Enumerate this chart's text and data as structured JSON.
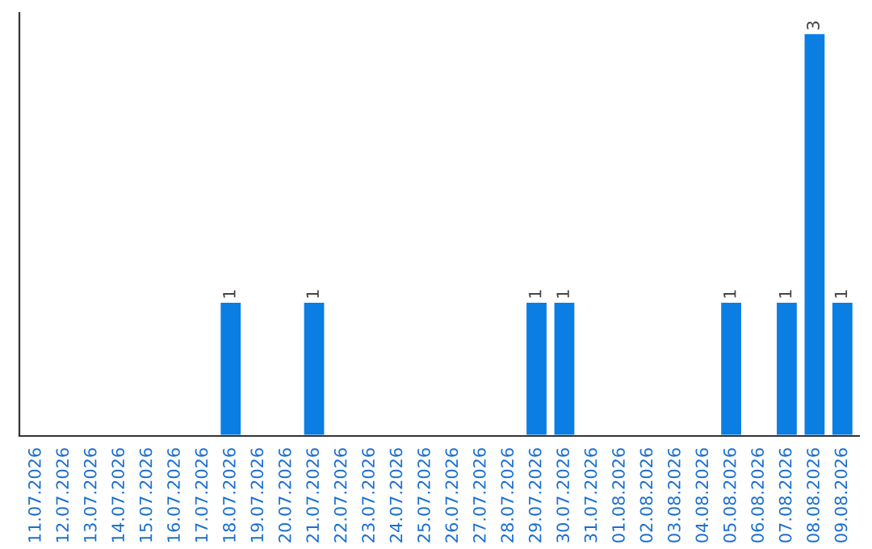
{
  "chart_data": {
    "type": "bar",
    "categories": [
      "11.07.2026",
      "12.07.2026",
      "13.07.2026",
      "14.07.2026",
      "15.07.2026",
      "16.07.2026",
      "17.07.2026",
      "18.07.2026",
      "19.07.2026",
      "20.07.2026",
      "21.07.2026",
      "22.07.2026",
      "23.07.2026",
      "24.07.2026",
      "25.07.2026",
      "26.07.2026",
      "27.07.2026",
      "28.07.2026",
      "29.07.2026",
      "30.07.2026",
      "31.07.2026",
      "01.08.2026",
      "02.08.2026",
      "03.08.2026",
      "04.08.2026",
      "05.08.2026",
      "06.08.2026",
      "07.08.2026",
      "08.08.2026",
      "09.08.2026"
    ],
    "values": [
      null,
      null,
      null,
      null,
      null,
      null,
      null,
      1,
      null,
      null,
      1,
      null,
      null,
      null,
      null,
      null,
      null,
      null,
      1,
      1,
      null,
      null,
      null,
      null,
      null,
      1,
      null,
      1,
      3,
      1
    ],
    "value_labels": [
      null,
      null,
      null,
      null,
      null,
      null,
      null,
      "1",
      null,
      null,
      "1",
      null,
      null,
      null,
      null,
      null,
      null,
      null,
      "1",
      "1",
      null,
      null,
      null,
      null,
      null,
      "1",
      null,
      "1",
      "3",
      "1"
    ],
    "color": "#0a7ee2",
    "grid": false,
    "legend": false
  }
}
